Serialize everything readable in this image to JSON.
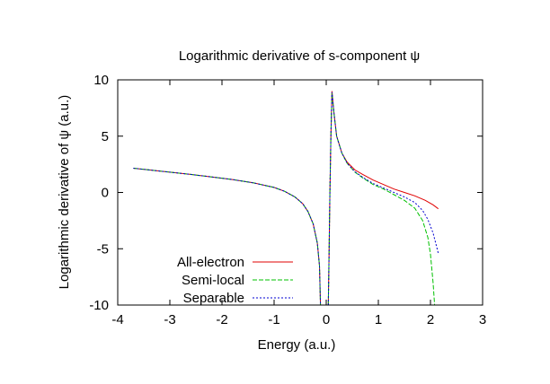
{
  "chart_data": {
    "type": "line",
    "title": "Logarithmic derivative of s-component ψ",
    "xlabel": "Energy (a.u.)",
    "ylabel": "Logarithmic derivative of ψ (a.u.)",
    "xlim": [
      -4,
      3
    ],
    "ylim": [
      -10,
      10
    ],
    "xticks": [
      -4,
      -3,
      -2,
      -1,
      0,
      1,
      2,
      3
    ],
    "yticks": [
      -10,
      -5,
      0,
      5,
      10
    ],
    "grid": false,
    "legend_position": "bottom-left",
    "series": [
      {
        "name": "All-electron",
        "color": "#e00000",
        "dash": "solid",
        "segments": [
          [
            [
              -3.7,
              2.15
            ],
            [
              -3.4,
              2.0
            ],
            [
              -3.0,
              1.8
            ],
            [
              -2.6,
              1.6
            ],
            [
              -2.2,
              1.38
            ],
            [
              -1.8,
              1.15
            ],
            [
              -1.4,
              0.85
            ],
            [
              -1.0,
              0.45
            ],
            [
              -0.8,
              0.1
            ],
            [
              -0.6,
              -0.4
            ],
            [
              -0.45,
              -1.0
            ],
            [
              -0.35,
              -1.7
            ],
            [
              -0.25,
              -2.8
            ],
            [
              -0.17,
              -4.5
            ],
            [
              -0.13,
              -6.5
            ],
            [
              -0.11,
              -10.0
            ]
          ],
          [
            [
              0.04,
              -10.0
            ],
            [
              0.05,
              -7.0
            ],
            [
              0.07,
              0.0
            ],
            [
              0.09,
              5.0
            ],
            [
              0.11,
              9.0
            ],
            [
              0.15,
              7.0
            ],
            [
              0.2,
              5.0
            ],
            [
              0.3,
              3.5
            ],
            [
              0.4,
              2.7
            ],
            [
              0.55,
              2.0
            ],
            [
              0.7,
              1.6
            ],
            [
              0.9,
              1.1
            ],
            [
              1.1,
              0.7
            ],
            [
              1.3,
              0.3
            ],
            [
              1.5,
              0.0
            ],
            [
              1.7,
              -0.3
            ],
            [
              1.9,
              -0.7
            ],
            [
              2.05,
              -1.1
            ],
            [
              2.15,
              -1.45
            ]
          ]
        ]
      },
      {
        "name": "Semi-local",
        "color": "#00c000",
        "dash": "5,2",
        "segments": [
          [
            [
              -3.7,
              2.15
            ],
            [
              -3.4,
              2.0
            ],
            [
              -3.0,
              1.8
            ],
            [
              -2.6,
              1.6
            ],
            [
              -2.2,
              1.38
            ],
            [
              -1.8,
              1.15
            ],
            [
              -1.4,
              0.85
            ],
            [
              -1.0,
              0.45
            ],
            [
              -0.8,
              0.1
            ],
            [
              -0.6,
              -0.4
            ],
            [
              -0.45,
              -1.0
            ],
            [
              -0.35,
              -1.7
            ],
            [
              -0.25,
              -2.8
            ],
            [
              -0.17,
              -4.5
            ],
            [
              -0.13,
              -6.5
            ],
            [
              -0.11,
              -10.0
            ]
          ],
          [
            [
              0.04,
              -10.0
            ],
            [
              0.05,
              -7.0
            ],
            [
              0.07,
              0.0
            ],
            [
              0.09,
              5.0
            ],
            [
              0.11,
              8.8
            ],
            [
              0.15,
              7.0
            ],
            [
              0.2,
              5.0
            ],
            [
              0.3,
              3.5
            ],
            [
              0.4,
              2.6
            ],
            [
              0.55,
              1.8
            ],
            [
              0.7,
              1.3
            ],
            [
              0.9,
              0.7
            ],
            [
              1.1,
              0.3
            ],
            [
              1.3,
              -0.2
            ],
            [
              1.5,
              -0.7
            ],
            [
              1.7,
              -1.4
            ],
            [
              1.85,
              -2.5
            ],
            [
              1.95,
              -4.0
            ],
            [
              2.0,
              -5.5
            ],
            [
              2.05,
              -8.0
            ],
            [
              2.08,
              -10.0
            ]
          ]
        ]
      },
      {
        "name": "Separable",
        "color": "#0000d0",
        "dash": "2,2",
        "segments": [
          [
            [
              -3.7,
              2.15
            ],
            [
              -3.4,
              2.0
            ],
            [
              -3.0,
              1.8
            ],
            [
              -2.6,
              1.6
            ],
            [
              -2.2,
              1.38
            ],
            [
              -1.8,
              1.15
            ],
            [
              -1.4,
              0.85
            ],
            [
              -1.0,
              0.45
            ],
            [
              -0.8,
              0.1
            ],
            [
              -0.6,
              -0.4
            ],
            [
              -0.45,
              -1.0
            ],
            [
              -0.35,
              -1.7
            ],
            [
              -0.25,
              -2.8
            ],
            [
              -0.17,
              -4.5
            ],
            [
              -0.13,
              -6.5
            ],
            [
              -0.11,
              -10.0
            ]
          ],
          [
            [
              0.04,
              -10.0
            ],
            [
              0.05,
              -7.0
            ],
            [
              0.07,
              0.0
            ],
            [
              0.09,
              5.0
            ],
            [
              0.11,
              8.9
            ],
            [
              0.15,
              7.0
            ],
            [
              0.2,
              5.0
            ],
            [
              0.3,
              3.5
            ],
            [
              0.4,
              2.6
            ],
            [
              0.55,
              1.85
            ],
            [
              0.7,
              1.35
            ],
            [
              0.9,
              0.8
            ],
            [
              1.1,
              0.4
            ],
            [
              1.3,
              0.0
            ],
            [
              1.5,
              -0.4
            ],
            [
              1.7,
              -0.9
            ],
            [
              1.85,
              -1.6
            ],
            [
              1.95,
              -2.4
            ],
            [
              2.05,
              -3.6
            ],
            [
              2.15,
              -5.4
            ]
          ]
        ]
      }
    ]
  }
}
